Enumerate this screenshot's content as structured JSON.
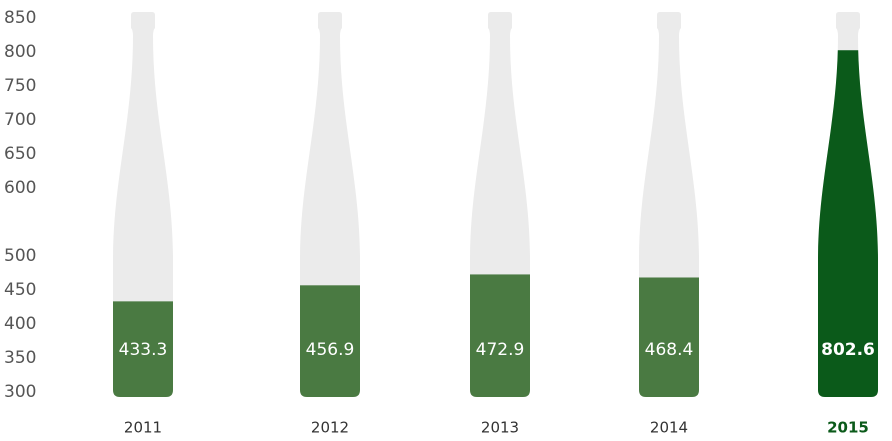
{
  "chart_data": {
    "type": "bottle-bar",
    "categories": [
      "2011",
      "2012",
      "2013",
      "2014",
      "2015"
    ],
    "values": [
      433.3,
      456.9,
      472.9,
      468.4,
      802.6
    ],
    "colors": [
      "#4a7a42",
      "#4a7a42",
      "#4a7a42",
      "#4a7a42",
      "#0b5a1a"
    ],
    "highlight_index": 4,
    "ylim": [
      300,
      850
    ],
    "yticks": [
      850,
      800,
      750,
      700,
      650,
      600,
      500,
      450,
      400,
      350,
      300
    ]
  }
}
